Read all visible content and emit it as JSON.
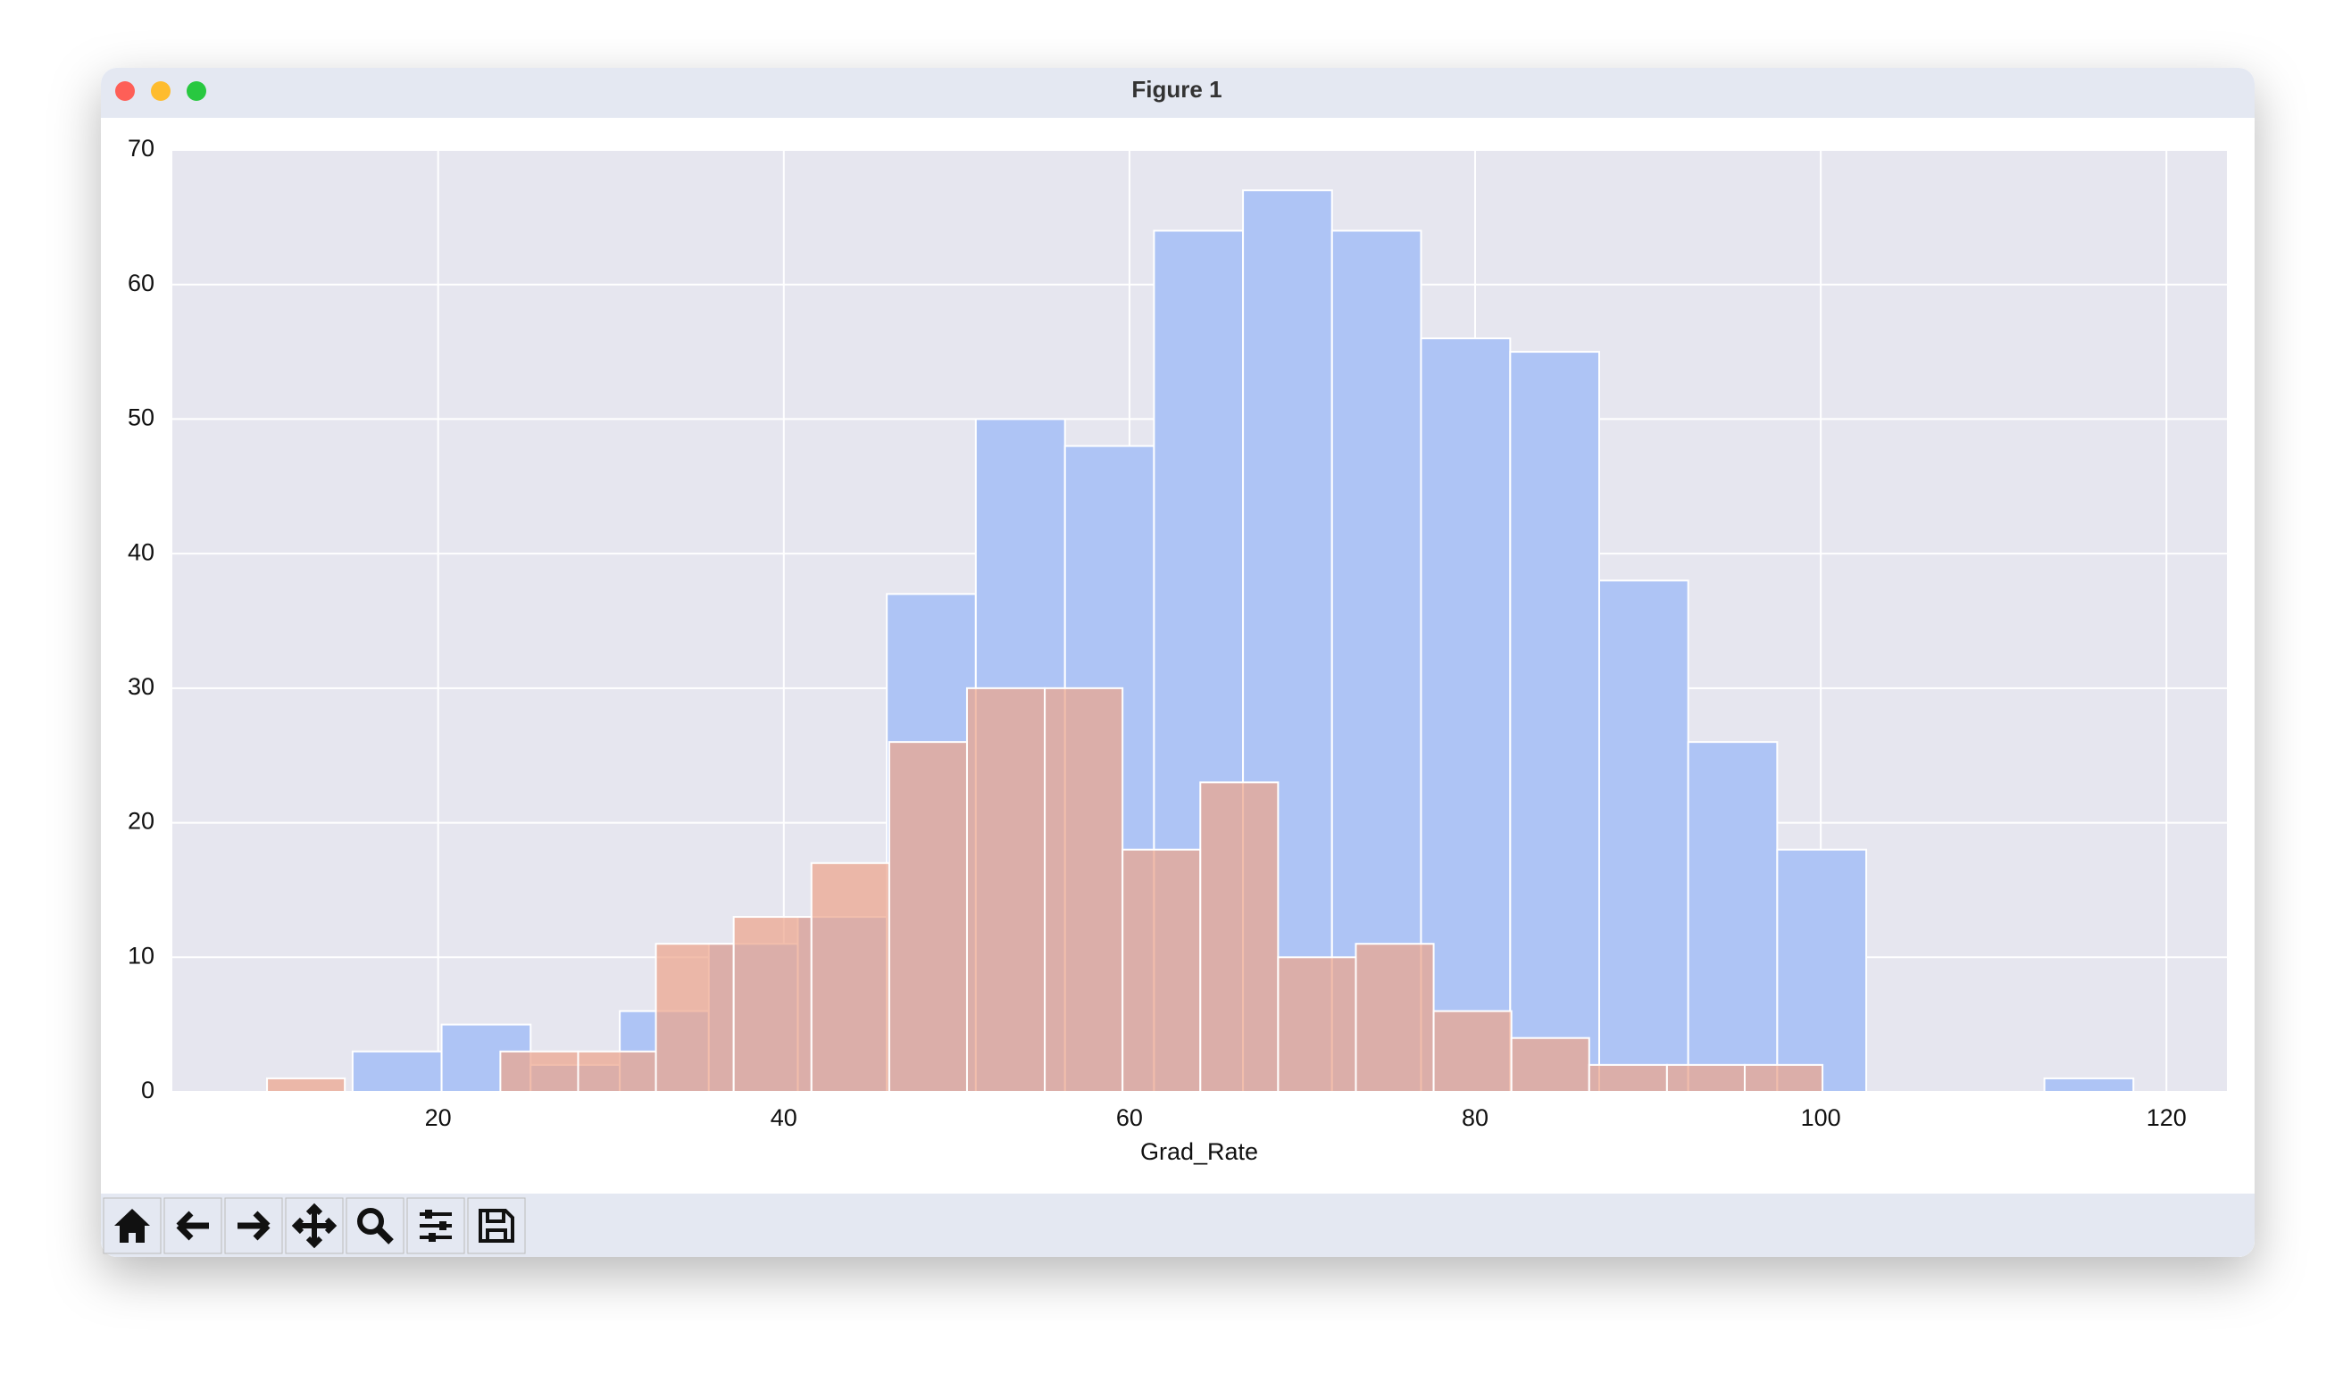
{
  "window_title": "Figure 1",
  "chart_data": {
    "type": "histogram",
    "xlabel": "Grad_Rate",
    "xlim": [
      4.62,
      123.5
    ],
    "ylim": [
      0,
      70
    ],
    "xticks": [
      20,
      40,
      60,
      80,
      100,
      120
    ],
    "yticks": [
      0,
      10,
      20,
      30,
      40,
      50,
      60,
      70
    ],
    "grid": true,
    "series": [
      {
        "color": "#aec4f5",
        "bins": [
          15.05,
          20.2,
          25.35,
          30.51,
          35.66,
          40.81,
          45.96,
          51.11,
          56.27,
          61.42,
          66.57,
          71.72,
          76.87,
          82.03,
          87.18,
          92.33,
          97.48,
          102.63,
          107.79,
          112.94,
          118.09
        ],
        "values": [
          3,
          5,
          2,
          6,
          11,
          13,
          37,
          50,
          48,
          64,
          67,
          64,
          56,
          55,
          38,
          26,
          18,
          0,
          0,
          1
        ]
      },
      {
        "color": "#eda58c",
        "bins": [
          10.1,
          14.6,
          19.1,
          23.6,
          28.1,
          32.6,
          37.1,
          41.6,
          46.1,
          50.6,
          55.1,
          59.6,
          64.1,
          68.6,
          73.1,
          77.6,
          82.1,
          86.6,
          91.1,
          95.6,
          100.1
        ],
        "values": [
          1,
          0,
          0,
          3,
          3,
          11,
          13,
          17,
          26,
          30,
          30,
          18,
          23,
          10,
          11,
          6,
          4,
          2,
          2,
          2
        ]
      }
    ]
  }
}
